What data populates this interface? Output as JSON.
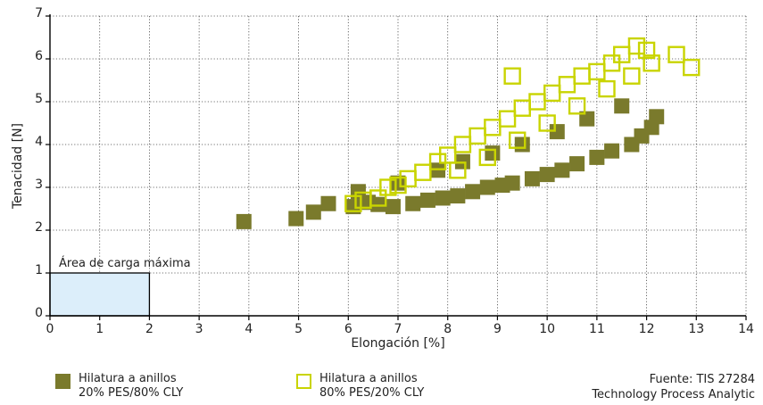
{
  "chart_data": {
    "type": "scatter",
    "xlabel": "Elongación [%]",
    "ylabel": "Tenacidad [N]",
    "xlim": [
      0,
      14
    ],
    "ylim": [
      0,
      7
    ],
    "xticks": [
      "0",
      "1",
      "2",
      "3",
      "4",
      "5",
      "6",
      "7",
      "8",
      "9",
      "10",
      "11",
      "12",
      "13",
      "14"
    ],
    "yticks": [
      "0",
      "1",
      "2",
      "3",
      "4",
      "5",
      "6",
      "7"
    ],
    "grid": "dotted",
    "annotation": {
      "label": "Área de carga máxima",
      "x": [
        0,
        2
      ],
      "y": [
        0,
        1
      ],
      "fill": "#dceefa"
    },
    "series": [
      {
        "name": "Hilatura a anillos\n20% PES/80% CLY",
        "color": "#7a7a2c",
        "marker": "filled-square",
        "points": [
          [
            3.9,
            2.2
          ],
          [
            4.95,
            2.27
          ],
          [
            5.3,
            2.42
          ],
          [
            5.6,
            2.62
          ],
          [
            6.1,
            2.55
          ],
          [
            6.2,
            2.9
          ],
          [
            6.4,
            2.65
          ],
          [
            6.6,
            2.6
          ],
          [
            6.9,
            2.55
          ],
          [
            7.0,
            3.1
          ],
          [
            7.3,
            2.62
          ],
          [
            7.6,
            2.7
          ],
          [
            7.8,
            3.4
          ],
          [
            7.9,
            2.75
          ],
          [
            8.2,
            2.8
          ],
          [
            8.3,
            3.6
          ],
          [
            8.5,
            2.9
          ],
          [
            8.8,
            3.0
          ],
          [
            8.9,
            3.8
          ],
          [
            9.1,
            3.05
          ],
          [
            9.3,
            3.1
          ],
          [
            9.5,
            4.0
          ],
          [
            9.7,
            3.2
          ],
          [
            10.0,
            3.3
          ],
          [
            10.2,
            4.3
          ],
          [
            10.3,
            3.4
          ],
          [
            10.6,
            3.55
          ],
          [
            10.8,
            4.6
          ],
          [
            11.0,
            3.7
          ],
          [
            11.3,
            3.85
          ],
          [
            11.5,
            4.9
          ],
          [
            11.7,
            4.0
          ],
          [
            11.9,
            4.2
          ],
          [
            12.1,
            4.4
          ],
          [
            12.2,
            4.65
          ]
        ]
      },
      {
        "name": "Hilatura a anillos\n80% PES/20% CLY",
        "color": "#c9d400",
        "marker": "open-square",
        "points": [
          [
            6.1,
            2.62
          ],
          [
            6.3,
            2.7
          ],
          [
            6.6,
            2.75
          ],
          [
            6.8,
            3.0
          ],
          [
            7.0,
            3.05
          ],
          [
            7.2,
            3.2
          ],
          [
            7.5,
            3.35
          ],
          [
            7.8,
            3.6
          ],
          [
            8.0,
            3.75
          ],
          [
            8.2,
            3.4
          ],
          [
            8.3,
            4.0
          ],
          [
            8.6,
            4.2
          ],
          [
            8.8,
            3.7
          ],
          [
            8.9,
            4.4
          ],
          [
            9.2,
            4.6
          ],
          [
            9.4,
            4.1
          ],
          [
            9.5,
            4.85
          ],
          [
            9.8,
            5.0
          ],
          [
            10.0,
            4.5
          ],
          [
            10.1,
            5.2
          ],
          [
            10.4,
            5.4
          ],
          [
            10.6,
            4.9
          ],
          [
            10.7,
            5.6
          ],
          [
            11.0,
            5.7
          ],
          [
            11.2,
            5.3
          ],
          [
            11.3,
            5.9
          ],
          [
            11.5,
            6.1
          ],
          [
            11.7,
            5.6
          ],
          [
            11.8,
            6.3
          ],
          [
            12.0,
            6.2
          ],
          [
            12.1,
            5.9
          ],
          [
            12.6,
            6.1
          ],
          [
            12.9,
            5.8
          ],
          [
            9.3,
            5.6
          ]
        ]
      }
    ],
    "source": "Fuente: TIS 27284\nTechnology Process Analytic"
  }
}
